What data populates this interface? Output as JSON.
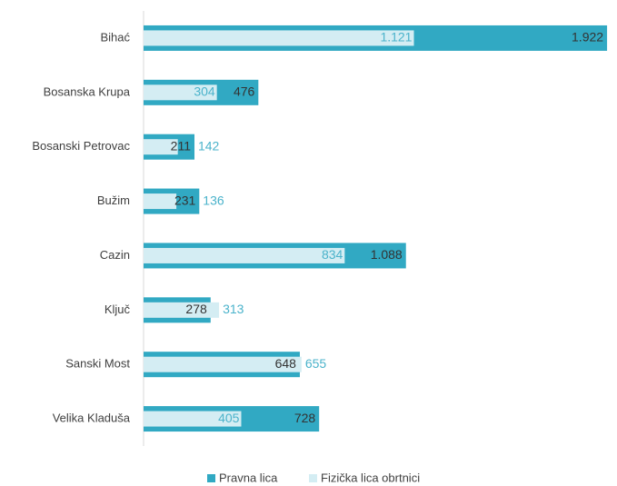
{
  "chart_data": {
    "type": "bar_overlap",
    "categories": [
      "Bihać",
      "Bosanska Krupa",
      "Bosanski Petrovac",
      "Bužim",
      "Cazin",
      "Ključ",
      "Sanski Most",
      "Velika Kladuša"
    ],
    "series": [
      {
        "name": "Pravna lica",
        "color": "#31a9c3",
        "values": [
          1922,
          476,
          211,
          231,
          1088,
          278,
          648,
          728
        ],
        "value_labels": [
          "1.922",
          "476",
          "211",
          "231",
          "1.088",
          "278",
          "648",
          "728"
        ]
      },
      {
        "name": "Fizička lica obrtnici",
        "color": "#d4edf3",
        "values": [
          1121,
          304,
          142,
          136,
          834,
          313,
          655,
          405
        ],
        "value_labels": [
          "1.121",
          "304",
          "142",
          "136",
          "834",
          "313",
          "655",
          "405"
        ]
      }
    ],
    "xlim": [
      0,
      1950
    ]
  }
}
